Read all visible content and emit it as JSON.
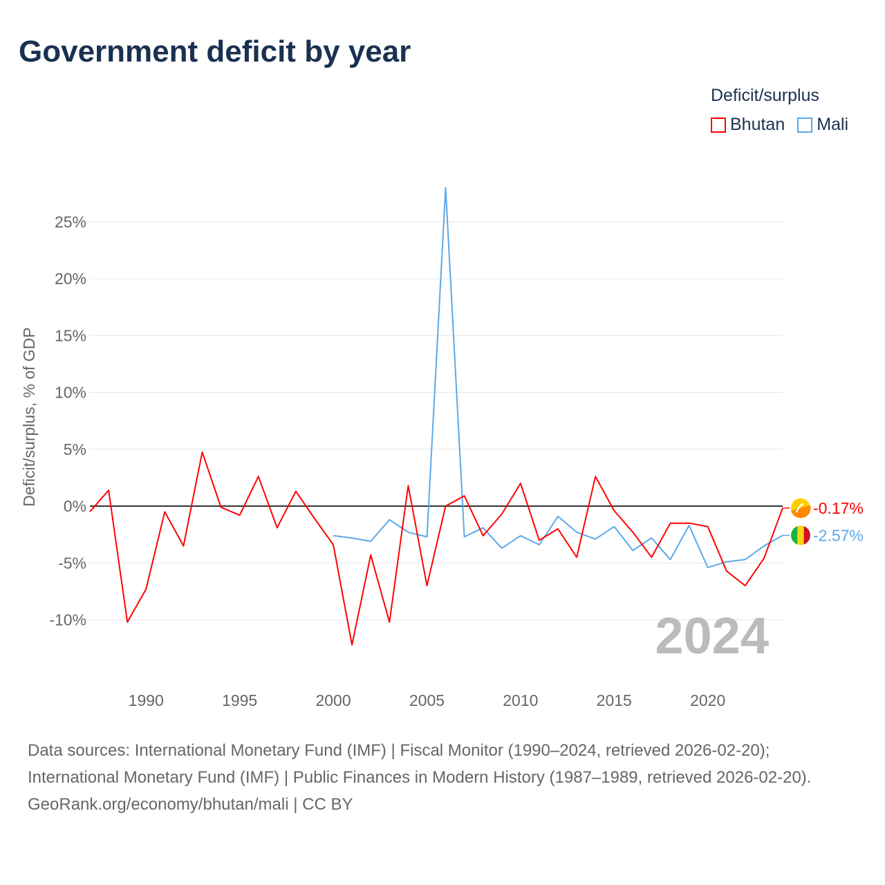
{
  "title": "Government deficit by year",
  "legend": {
    "title": "Deficit/surplus",
    "items": [
      {
        "name": "Bhutan",
        "color": "#ff0000"
      },
      {
        "name": "Mali",
        "color": "#5ba8e8"
      }
    ]
  },
  "chart_data": {
    "type": "line",
    "title": "Government deficit by year",
    "xlabel": "",
    "ylabel": "Deficit/surplus, % of GDP",
    "xlim": [
      1987,
      2024
    ],
    "ylim": [
      -12.5,
      28.5
    ],
    "x_ticks": [
      1990,
      1995,
      2000,
      2005,
      2010,
      2015,
      2020
    ],
    "y_ticks": [
      -10,
      -5,
      0,
      5,
      10,
      15,
      20,
      25
    ],
    "y_tick_labels": [
      "-10%",
      "-5%",
      "0%",
      "5%",
      "10%",
      "15%",
      "20%",
      "25%"
    ],
    "grid": true,
    "year_label": "2024",
    "series": [
      {
        "name": "Bhutan",
        "color": "#ff0000",
        "end_label": "-0.17%",
        "x": [
          1987,
          1988,
          1989,
          1990,
          1991,
          1992,
          1993,
          1994,
          1995,
          1996,
          1997,
          1998,
          1999,
          2000,
          2001,
          2002,
          2003,
          2004,
          2005,
          2006,
          2007,
          2008,
          2009,
          2010,
          2011,
          2012,
          2013,
          2014,
          2015,
          2016,
          2017,
          2018,
          2019,
          2020,
          2021,
          2022,
          2023,
          2024
        ],
        "values": [
          -0.5,
          1.4,
          -10.2,
          -7.3,
          -0.5,
          -3.5,
          4.75,
          -0.1,
          -0.8,
          2.6,
          -1.9,
          1.3,
          -1.1,
          -3.4,
          -12.2,
          -4.3,
          -10.2,
          1.8,
          -7.0,
          0.0,
          0.9,
          -2.6,
          -0.7,
          2.0,
          -3.0,
          -2.0,
          -4.5,
          2.6,
          -0.4,
          -2.3,
          -4.5,
          -1.5,
          -1.5,
          -1.8,
          -5.7,
          -7.0,
          -4.6,
          -0.17
        ]
      },
      {
        "name": "Mali",
        "color": "#5ba8e8",
        "end_label": "-2.57%",
        "x": [
          2000,
          2001,
          2002,
          2003,
          2004,
          2005,
          2006,
          2007,
          2008,
          2009,
          2010,
          2011,
          2012,
          2013,
          2014,
          2015,
          2016,
          2017,
          2018,
          2019,
          2020,
          2021,
          2022,
          2023,
          2024
        ],
        "values": [
          -2.6,
          -2.8,
          -3.1,
          -1.2,
          -2.3,
          -2.7,
          28.0,
          -2.7,
          -1.9,
          -3.7,
          -2.6,
          -3.4,
          -0.9,
          -2.3,
          -2.9,
          -1.8,
          -3.9,
          -2.8,
          -4.7,
          -1.7,
          -5.4,
          -4.9,
          -4.7,
          -3.5,
          -2.57
        ]
      }
    ]
  },
  "footer": {
    "sources": "Data sources: International Monetary Fund (IMF) | Fiscal Monitor (1990–2024, retrieved 2026-02-20); International Monetary Fund (IMF) | Public Finances in Modern History (1987–1989, retrieved 2026-02-20).",
    "credit": "GeoRank.org/economy/bhutan/mali | CC BY"
  }
}
